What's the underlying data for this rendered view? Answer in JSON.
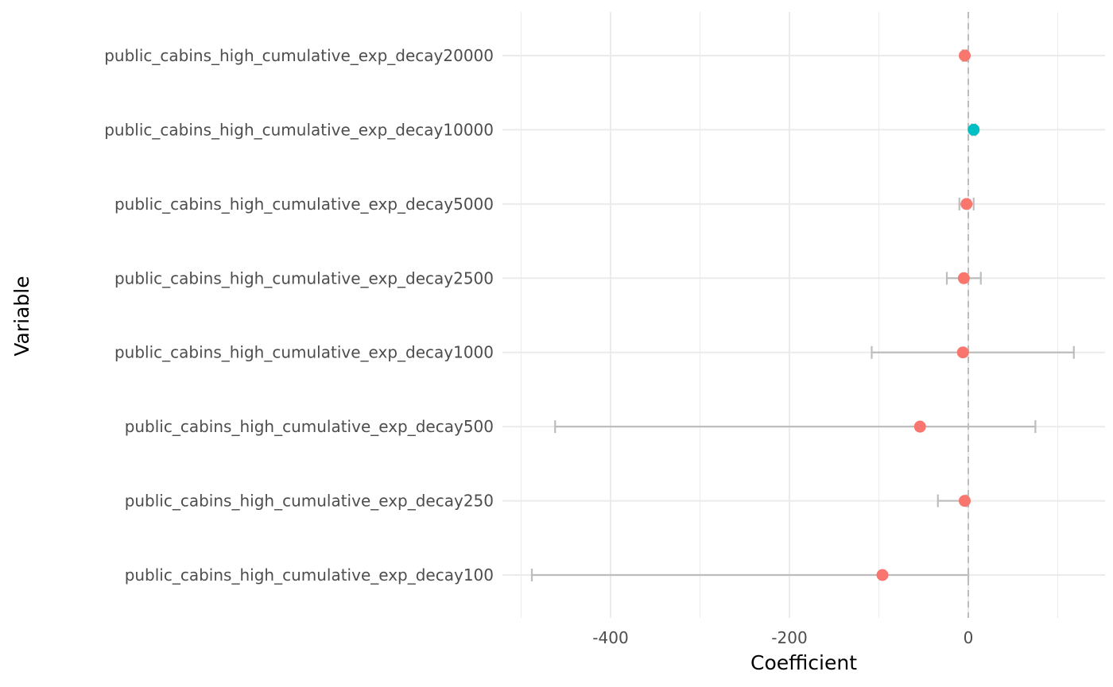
{
  "chart_data": {
    "type": "scatter",
    "subtype": "coefficient-plot",
    "xlabel": "Coefficient",
    "ylabel": "Variable",
    "xlim": [
      -500,
      147
    ],
    "x_ticks": [
      -400,
      -200,
      0
    ],
    "x_tick_labels": [
      "-400",
      "-200",
      "0"
    ],
    "reference_line": {
      "x": 0,
      "style": "dashed",
      "color": "#bdbdbd"
    },
    "grid": true,
    "legend": "none",
    "colors": {
      "negative": "#f8766d",
      "positive": "#00bfc4",
      "errorbar": "#bdbdbd",
      "grid": "#ebebeb"
    },
    "variables": [
      "public_cabins_high_cumulative_exp_decay100",
      "public_cabins_high_cumulative_exp_decay250",
      "public_cabins_high_cumulative_exp_decay500",
      "public_cabins_high_cumulative_exp_decay1000",
      "public_cabins_high_cumulative_exp_decay2500",
      "public_cabins_high_cumulative_exp_decay5000",
      "public_cabins_high_cumulative_exp_decay10000",
      "public_cabins_high_cumulative_exp_decay20000"
    ],
    "points": [
      {
        "variable": "public_cabins_high_cumulative_exp_decay100",
        "estimate": -96,
        "lower": -488,
        "upper": 0,
        "sign": "negative"
      },
      {
        "variable": "public_cabins_high_cumulative_exp_decay250",
        "estimate": -4,
        "lower": -34,
        "upper": -2,
        "sign": "negative"
      },
      {
        "variable": "public_cabins_high_cumulative_exp_decay500",
        "estimate": -54,
        "lower": -462,
        "upper": 75,
        "sign": "negative"
      },
      {
        "variable": "public_cabins_high_cumulative_exp_decay1000",
        "estimate": -6,
        "lower": -108,
        "upper": 118,
        "sign": "negative"
      },
      {
        "variable": "public_cabins_high_cumulative_exp_decay2500",
        "estimate": -5,
        "lower": -24,
        "upper": 14,
        "sign": "negative"
      },
      {
        "variable": "public_cabins_high_cumulative_exp_decay5000",
        "estimate": -2,
        "lower": -10,
        "upper": 6,
        "sign": "negative"
      },
      {
        "variable": "public_cabins_high_cumulative_exp_decay10000",
        "estimate": 6,
        "lower": 4,
        "upper": 8,
        "sign": "positive"
      },
      {
        "variable": "public_cabins_high_cumulative_exp_decay20000",
        "estimate": -4,
        "lower": -6,
        "upper": -2,
        "sign": "negative"
      }
    ]
  }
}
